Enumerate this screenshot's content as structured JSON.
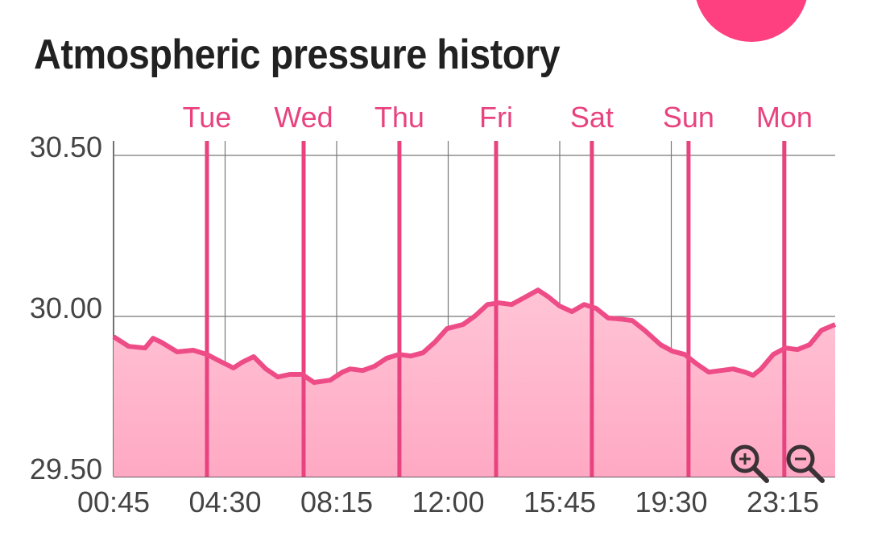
{
  "chart_data": {
    "type": "area",
    "title": "Atmospheric pressure history",
    "xlabel": "",
    "ylabel": "",
    "x_unit": "hours since first tick",
    "xlim": [
      0,
      24.26
    ],
    "ylim": [
      29.5,
      30.55
    ],
    "yticks": [
      {
        "value": 29.5,
        "label": "29.50"
      },
      {
        "value": 30.0,
        "label": "30.00"
      },
      {
        "value": 30.5,
        "label": "30.50"
      }
    ],
    "xticks": [
      {
        "value": 0,
        "label": "00:45"
      },
      {
        "value": 3.75,
        "label": "04:30"
      },
      {
        "value": 7.5,
        "label": "08:15"
      },
      {
        "value": 11.25,
        "label": "12:00"
      },
      {
        "value": 15,
        "label": "15:45"
      },
      {
        "value": 18.75,
        "label": "19:30"
      },
      {
        "value": 22.5,
        "label": "23:15"
      }
    ],
    "day_markers": [
      {
        "value": 3.14,
        "label": "Tue"
      },
      {
        "value": 6.39,
        "label": "Wed"
      },
      {
        "value": 9.61,
        "label": "Thu"
      },
      {
        "value": 12.86,
        "label": "Fri"
      },
      {
        "value": 16.08,
        "label": "Sat"
      },
      {
        "value": 19.33,
        "label": "Sun"
      },
      {
        "value": 22.55,
        "label": "Mon"
      }
    ],
    "grid": true,
    "series": [
      {
        "name": "pressure",
        "x": [
          0,
          0.51,
          1.06,
          1.33,
          1.6,
          2.14,
          2.68,
          3.14,
          3.49,
          4.03,
          4.31,
          4.71,
          5.12,
          5.52,
          5.93,
          6.34,
          6.74,
          7.28,
          7.69,
          7.96,
          8.37,
          8.77,
          9.18,
          9.59,
          9.99,
          10.4,
          10.8,
          11.21,
          11.75,
          12.16,
          12.57,
          12.97,
          13.38,
          13.78,
          14.27,
          14.6,
          15.0,
          15.41,
          15.82,
          16.22,
          16.63,
          17.03,
          17.44,
          17.85,
          18.39,
          18.79,
          19.2,
          19.61,
          20.01,
          20.42,
          20.83,
          21.23,
          21.5,
          21.77,
          22.18,
          22.59,
          22.99,
          23.4,
          23.8,
          24.26
        ],
        "values": [
          29.937,
          29.907,
          29.902,
          29.932,
          29.92,
          29.89,
          29.895,
          29.882,
          29.865,
          29.84,
          29.857,
          29.875,
          29.837,
          29.812,
          29.82,
          29.82,
          29.795,
          29.802,
          29.827,
          29.837,
          29.832,
          29.845,
          29.87,
          29.882,
          29.877,
          29.887,
          29.92,
          29.962,
          29.975,
          30.002,
          30.037,
          30.042,
          30.037,
          30.057,
          30.082,
          30.062,
          30.032,
          30.015,
          30.037,
          30.025,
          29.995,
          29.992,
          29.987,
          29.957,
          29.912,
          29.892,
          29.882,
          29.852,
          29.827,
          29.832,
          29.837,
          29.827,
          29.817,
          29.837,
          29.882,
          29.902,
          29.897,
          29.912,
          29.957,
          29.975
        ]
      }
    ]
  },
  "colors": {
    "line": "#ee4c86",
    "fill": "#ffb6cc",
    "day": "#e8437f",
    "fab": "#fe3f80"
  },
  "controls": {
    "zoom_in": "zoom-in-icon",
    "zoom_out": "zoom-out-icon"
  }
}
